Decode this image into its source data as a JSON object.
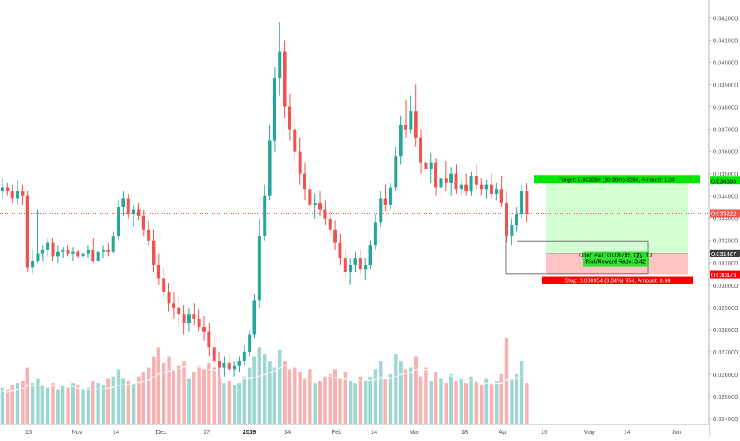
{
  "chart_data": {
    "type": "candlestick",
    "price_axis": {
      "ticks": [
        "0.042000",
        "0.041000",
        "0.040000",
        "0.039000",
        "0.038000",
        "0.037000",
        "0.036000",
        "0.035000",
        "0.034000",
        "0.033000",
        "0.032000",
        "0.031000",
        "0.030000",
        "0.029000",
        "0.028000",
        "0.027000",
        "0.026000",
        "0.025000",
        "0.024000"
      ],
      "range": [
        0.02375,
        0.0428
      ]
    },
    "time_axis": {
      "labels": [
        {
          "text": "15",
          "bold": false
        },
        {
          "text": "Nov",
          "bold": false
        },
        {
          "text": "14",
          "bold": false
        },
        {
          "text": "Dec",
          "bold": false
        },
        {
          "text": "17",
          "bold": false
        },
        {
          "text": "2019",
          "bold": true
        },
        {
          "text": "14",
          "bold": false
        },
        {
          "text": "Feb",
          "bold": false
        },
        {
          "text": "14",
          "bold": false
        },
        {
          "text": "Mar",
          "bold": false
        },
        {
          "text": "18",
          "bold": false
        },
        {
          "text": "Apr",
          "bold": false
        },
        {
          "text": "15",
          "bold": false
        },
        {
          "text": "May",
          "bold": false
        },
        {
          "text": "14",
          "bold": false
        },
        {
          "text": "Jun",
          "bold": false
        }
      ]
    },
    "price_badges": {
      "target": "0.034693",
      "current": "0.033222",
      "entry": "0.031427",
      "stop": "0.030473"
    },
    "position": {
      "target_label": "Target: 0.003266 (10.39%) 3266, Amount: 1.03",
      "stop_label": "Stop: 0.000954 (3.04%) 954, Amount: 0.98",
      "pnl_line1": "Open P&L: 0.001795, Qty: 10",
      "pnl_line2": "Risk/Reward Ratio: 3.42"
    },
    "key_prices": {
      "target": 0.034693,
      "current": 0.033222,
      "entry": 0.031427,
      "stop": 0.030473
    },
    "candles_ohlc": [
      [
        0.0342,
        0.0348,
        0.0339,
        0.0344
      ],
      [
        0.0344,
        0.0346,
        0.034,
        0.0342
      ],
      [
        0.0342,
        0.0345,
        0.0337,
        0.0339
      ],
      [
        0.0339,
        0.0347,
        0.0336,
        0.0342
      ],
      [
        0.0342,
        0.0345,
        0.0336,
        0.034
      ],
      [
        0.034,
        0.0342,
        0.0306,
        0.0308
      ],
      [
        0.0308,
        0.0316,
        0.0305,
        0.0311
      ],
      [
        0.0311,
        0.0334,
        0.031,
        0.0314
      ],
      [
        0.0314,
        0.0318,
        0.0311,
        0.0316
      ],
      [
        0.0316,
        0.0321,
        0.0313,
        0.0319
      ],
      [
        0.0319,
        0.0321,
        0.0311,
        0.0313
      ],
      [
        0.0313,
        0.0318,
        0.031,
        0.0315
      ],
      [
        0.0315,
        0.0317,
        0.0312,
        0.0316
      ],
      [
        0.0316,
        0.0318,
        0.0313,
        0.0314
      ],
      [
        0.0314,
        0.0317,
        0.0311,
        0.0315
      ],
      [
        0.0315,
        0.0316,
        0.0312,
        0.0313
      ],
      [
        0.0313,
        0.0316,
        0.0311,
        0.0314
      ],
      [
        0.0314,
        0.0318,
        0.0312,
        0.0316
      ],
      [
        0.0316,
        0.0321,
        0.031,
        0.0311
      ],
      [
        0.0311,
        0.0317,
        0.031,
        0.0315
      ],
      [
        0.0315,
        0.0318,
        0.0312,
        0.0316
      ],
      [
        0.0316,
        0.0319,
        0.0313,
        0.0315
      ],
      [
        0.0315,
        0.0324,
        0.0314,
        0.0322
      ],
      [
        0.0322,
        0.0338,
        0.032,
        0.0335
      ],
      [
        0.0335,
        0.0342,
        0.0331,
        0.0339
      ],
      [
        0.0339,
        0.0341,
        0.033,
        0.0332
      ],
      [
        0.0332,
        0.0336,
        0.0326,
        0.0334
      ],
      [
        0.0334,
        0.0337,
        0.0329,
        0.0331
      ],
      [
        0.0331,
        0.0334,
        0.0322,
        0.0325
      ],
      [
        0.0325,
        0.0329,
        0.0318,
        0.032
      ],
      [
        0.032,
        0.0325,
        0.0306,
        0.0309
      ],
      [
        0.0309,
        0.0314,
        0.03,
        0.0303
      ],
      [
        0.0303,
        0.0308,
        0.0295,
        0.0297
      ],
      [
        0.0297,
        0.0301,
        0.0288,
        0.0292
      ],
      [
        0.0292,
        0.0297,
        0.0285,
        0.029
      ],
      [
        0.029,
        0.0295,
        0.0281,
        0.0287
      ],
      [
        0.0287,
        0.0291,
        0.0278,
        0.0283
      ],
      [
        0.0283,
        0.029,
        0.0279,
        0.0287
      ],
      [
        0.0287,
        0.0292,
        0.0282,
        0.0285
      ],
      [
        0.0285,
        0.0289,
        0.0279,
        0.0281
      ],
      [
        0.0281,
        0.0286,
        0.0275,
        0.0279
      ],
      [
        0.0279,
        0.0283,
        0.0268,
        0.0272
      ],
      [
        0.0272,
        0.0277,
        0.0262,
        0.0266
      ],
      [
        0.0266,
        0.027,
        0.0258,
        0.0263
      ],
      [
        0.0263,
        0.0268,
        0.0259,
        0.0265
      ],
      [
        0.0265,
        0.0269,
        0.026,
        0.0262
      ],
      [
        0.0262,
        0.0266,
        0.0259,
        0.0264
      ],
      [
        0.0264,
        0.0268,
        0.0261,
        0.0266
      ],
      [
        0.0266,
        0.0273,
        0.0264,
        0.027
      ],
      [
        0.027,
        0.028,
        0.0268,
        0.0278
      ],
      [
        0.0278,
        0.0296,
        0.0276,
        0.0293
      ],
      [
        0.0293,
        0.033,
        0.029,
        0.0322
      ],
      [
        0.0322,
        0.0345,
        0.032,
        0.034
      ],
      [
        0.034,
        0.0372,
        0.0338,
        0.0365
      ],
      [
        0.0365,
        0.0398,
        0.036,
        0.0393
      ],
      [
        0.0393,
        0.0418,
        0.0385,
        0.0405
      ],
      [
        0.0405,
        0.041,
        0.0375,
        0.038
      ],
      [
        0.038,
        0.0386,
        0.0365,
        0.037
      ],
      [
        0.037,
        0.0375,
        0.0355,
        0.036
      ],
      [
        0.036,
        0.0366,
        0.0345,
        0.035
      ],
      [
        0.035,
        0.0355,
        0.0338,
        0.0343
      ],
      [
        0.0343,
        0.0348,
        0.0332,
        0.0336
      ],
      [
        0.0336,
        0.0341,
        0.033,
        0.0337
      ],
      [
        0.0337,
        0.0342,
        0.0331,
        0.0334
      ],
      [
        0.0334,
        0.0338,
        0.0327,
        0.033
      ],
      [
        0.033,
        0.0334,
        0.0322,
        0.0325
      ],
      [
        0.0325,
        0.0329,
        0.0316,
        0.0319
      ],
      [
        0.0319,
        0.0323,
        0.0309,
        0.0312
      ],
      [
        0.0312,
        0.0316,
        0.0303,
        0.0306
      ],
      [
        0.0306,
        0.0312,
        0.03,
        0.0309
      ],
      [
        0.0309,
        0.0315,
        0.0306,
        0.0312
      ],
      [
        0.0312,
        0.0316,
        0.0305,
        0.0307
      ],
      [
        0.0307,
        0.0312,
        0.0302,
        0.0309
      ],
      [
        0.0309,
        0.032,
        0.0307,
        0.0318
      ],
      [
        0.0318,
        0.0332,
        0.0316,
        0.0328
      ],
      [
        0.0328,
        0.0342,
        0.0326,
        0.0339
      ],
      [
        0.0339,
        0.0345,
        0.0333,
        0.0336
      ],
      [
        0.0336,
        0.0346,
        0.0334,
        0.0344
      ],
      [
        0.0344,
        0.0362,
        0.0342,
        0.0358
      ],
      [
        0.0358,
        0.0376,
        0.0354,
        0.0372
      ],
      [
        0.0372,
        0.0383,
        0.0366,
        0.037
      ],
      [
        0.037,
        0.0385,
        0.0368,
        0.0378
      ],
      [
        0.0378,
        0.039,
        0.0362,
        0.0366
      ],
      [
        0.0366,
        0.037,
        0.035,
        0.0355
      ],
      [
        0.0355,
        0.0362,
        0.0348,
        0.0352
      ],
      [
        0.0352,
        0.0359,
        0.0346,
        0.0355
      ],
      [
        0.0355,
        0.0357,
        0.034,
        0.0344
      ],
      [
        0.0344,
        0.0352,
        0.0336,
        0.0348
      ],
      [
        0.0348,
        0.0356,
        0.0342,
        0.0346
      ],
      [
        0.0346,
        0.0353,
        0.034,
        0.035
      ],
      [
        0.035,
        0.0354,
        0.0341,
        0.0343
      ],
      [
        0.0343,
        0.0348,
        0.034,
        0.0345
      ],
      [
        0.0345,
        0.035,
        0.034,
        0.0342
      ],
      [
        0.0342,
        0.0351,
        0.034,
        0.0349
      ],
      [
        0.0349,
        0.0354,
        0.0343,
        0.0345
      ],
      [
        0.0345,
        0.0348,
        0.034,
        0.0343
      ],
      [
        0.0343,
        0.0347,
        0.0339,
        0.0345
      ],
      [
        0.0345,
        0.035,
        0.0339,
        0.0341
      ],
      [
        0.0341,
        0.0346,
        0.0338,
        0.0343
      ],
      [
        0.0343,
        0.0349,
        0.0335,
        0.0337
      ],
      [
        0.0337,
        0.0342,
        0.0319,
        0.0322
      ],
      [
        0.0322,
        0.033,
        0.0318,
        0.0327
      ],
      [
        0.0327,
        0.0335,
        0.0324,
        0.0332
      ],
      [
        0.0332,
        0.0345,
        0.033,
        0.0342
      ],
      [
        0.0342,
        0.0346,
        0.0328,
        0.0332
      ]
    ],
    "volume": [
      0.0254,
      0.0253,
      0.0255,
      0.0256,
      0.0257,
      0.0263,
      0.0256,
      0.0258,
      0.0255,
      0.0254,
      0.0256,
      0.0253,
      0.0255,
      0.0254,
      0.0256,
      0.0255,
      0.0253,
      0.0254,
      0.0257,
      0.0256,
      0.0255,
      0.0258,
      0.0259,
      0.0262,
      0.0258,
      0.0257,
      0.0256,
      0.0259,
      0.0261,
      0.0263,
      0.0268,
      0.0272,
      0.0265,
      0.0268,
      0.0262,
      0.0264,
      0.0266,
      0.0258,
      0.0261,
      0.0264,
      0.0262,
      0.0265,
      0.0263,
      0.0258,
      0.0256,
      0.0257,
      0.0255,
      0.0256,
      0.0259,
      0.0263,
      0.0268,
      0.0272,
      0.0269,
      0.0266,
      0.0263,
      0.0271,
      0.0266,
      0.0262,
      0.0263,
      0.0261,
      0.0258,
      0.0262,
      0.0256,
      0.0257,
      0.0259,
      0.026,
      0.0262,
      0.0258,
      0.0261,
      0.0257,
      0.0256,
      0.0259,
      0.0257,
      0.0259,
      0.0262,
      0.0266,
      0.0258,
      0.026,
      0.0269,
      0.0266,
      0.0262,
      0.0263,
      0.0268,
      0.0259,
      0.0263,
      0.0257,
      0.0261,
      0.0258,
      0.0256,
      0.026,
      0.0257,
      0.0258,
      0.0256,
      0.0259,
      0.0257,
      0.0255,
      0.0258,
      0.0256,
      0.0257,
      0.026,
      0.0276,
      0.0258,
      0.026,
      0.0266,
      0.0256
    ]
  }
}
